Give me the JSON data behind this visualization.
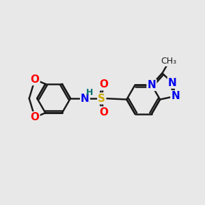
{
  "background_color": "#e8e8e8",
  "bond_color": "#1a1a1a",
  "bond_width": 1.8,
  "atom_colors": {
    "O": "#ff0000",
    "N": "#0000ee",
    "S": "#ccaa00",
    "H": "#007070",
    "C": "#1a1a1a"
  },
  "font_size_atoms": 11,
  "font_size_methyl": 9,
  "fig_width": 3.0,
  "fig_height": 3.0,
  "dpi": 100
}
